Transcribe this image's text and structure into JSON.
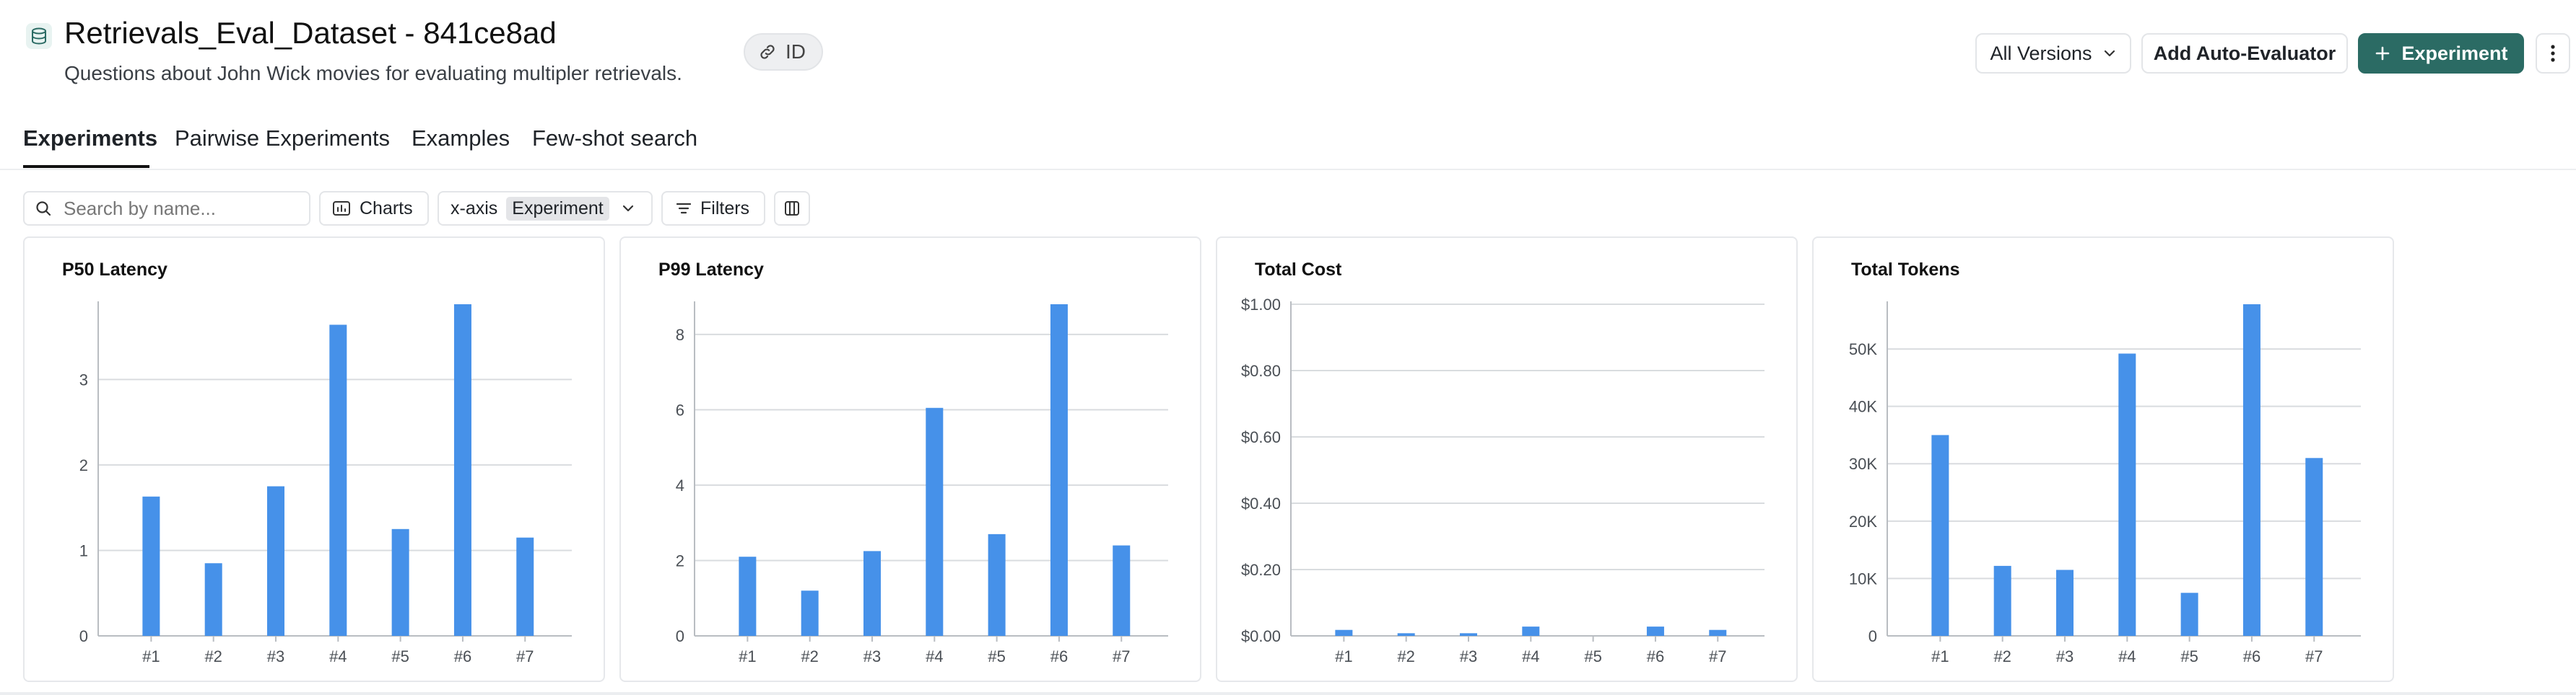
{
  "header": {
    "title": "Retrievals_Eval_Dataset - 841ce8ad",
    "subtitle": "Questions about John Wick movies for evaluating multipler retrievals.",
    "id_label": "ID",
    "versions_label": "All Versions",
    "auto_eval_label": "Add Auto-Evaluator",
    "experiment_label": "Experiment"
  },
  "tabs": [
    {
      "label": "Experiments",
      "active": true
    },
    {
      "label": "Pairwise Experiments",
      "active": false
    },
    {
      "label": "Examples",
      "active": false
    },
    {
      "label": "Few-shot search",
      "active": false
    }
  ],
  "toolbar": {
    "search_placeholder": "Search by name...",
    "charts_label": "Charts",
    "xaxis_label": "x-axis",
    "xaxis_value": "Experiment",
    "filters_label": "Filters"
  },
  "colors": {
    "accent": "#2b6b64",
    "bar": "#4691e9"
  },
  "chart_data": [
    {
      "type": "bar",
      "title": "P50 Latency",
      "categories": [
        "#1",
        "#2",
        "#3",
        "#4",
        "#5",
        "#6",
        "#7"
      ],
      "values": [
        1.63,
        0.85,
        1.75,
        3.64,
        1.25,
        3.88,
        1.15
      ],
      "ylim": [
        0,
        3.88
      ],
      "yticks": [
        0,
        1,
        2,
        3
      ],
      "ytick_labels": [
        "0",
        "1",
        "2",
        "3"
      ]
    },
    {
      "type": "bar",
      "title": "P99 Latency",
      "categories": [
        "#1",
        "#2",
        "#3",
        "#4",
        "#5",
        "#6",
        "#7"
      ],
      "values": [
        2.1,
        1.2,
        2.25,
        6.05,
        2.7,
        8.8,
        2.4
      ],
      "ylim": [
        0,
        8.8
      ],
      "yticks": [
        0,
        2,
        4,
        6,
        8
      ],
      "ytick_labels": [
        "0",
        "2",
        "4",
        "6",
        "8"
      ]
    },
    {
      "type": "bar",
      "title": "Total Cost",
      "categories": [
        "#1",
        "#2",
        "#3",
        "#4",
        "#5",
        "#6",
        "#7"
      ],
      "values": [
        0.018,
        0.008,
        0.008,
        0.028,
        0,
        0.028,
        0.018
      ],
      "ylim": [
        0,
        1
      ],
      "yticks": [
        0,
        0.2,
        0.4,
        0.6,
        0.8,
        1.0
      ],
      "ytick_labels": [
        "$0.00",
        "$0.20",
        "$0.40",
        "$0.60",
        "$0.80",
        "$1.00"
      ]
    },
    {
      "type": "bar",
      "title": "Total Tokens",
      "categories": [
        "#1",
        "#2",
        "#3",
        "#4",
        "#5",
        "#6",
        "#7"
      ],
      "values": [
        35000,
        12200,
        11500,
        49200,
        7500,
        57800,
        31000
      ],
      "ylim": [
        0,
        57800
      ],
      "yticks": [
        0,
        10000,
        20000,
        30000,
        40000,
        50000
      ],
      "ytick_labels": [
        "0",
        "10K",
        "20K",
        "30K",
        "40K",
        "50K"
      ]
    }
  ]
}
